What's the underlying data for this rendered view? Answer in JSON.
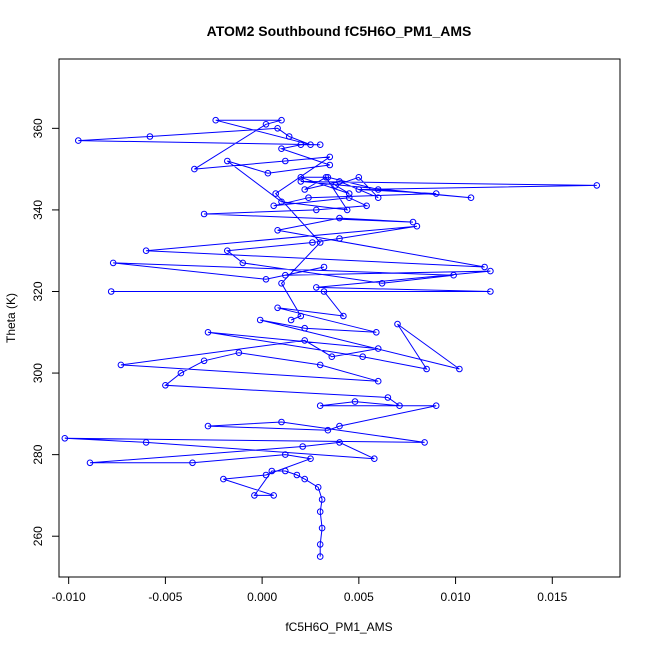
{
  "chart_data": {
    "type": "scatter",
    "title": "ATOM2 Southbound fC5H6O_PM1_AMS",
    "xlabel": "fC5H6O_PM1_AMS",
    "ylabel": "Theta (K)",
    "xlim": [
      -0.0105,
      0.0185
    ],
    "ylim": [
      250,
      377
    ],
    "x_ticks": [
      -0.01,
      -0.005,
      0.0,
      0.005,
      0.01,
      0.015
    ],
    "x_tick_labels": [
      "-0.010",
      "-0.005",
      "0.000",
      "0.005",
      "0.010",
      "0.015"
    ],
    "y_ticks": [
      260,
      280,
      300,
      320,
      340,
      360
    ],
    "y_tick_labels": [
      "260",
      "280",
      "300",
      "320",
      "340",
      "360"
    ],
    "grid": false,
    "series_color": "#0000ff",
    "marker": "open-circle",
    "connected": true,
    "series": [
      {
        "x": [
          0.003,
          0.003,
          0.0031,
          0.003,
          0.0031,
          0.0029,
          0.0022,
          0.0018,
          0.0012,
          0.0005,
          -0.0004,
          0.0006,
          -0.002,
          0.0002,
          0.0025,
          0.0012,
          -0.0036,
          -0.0089,
          0.0021,
          0.004,
          0.0058,
          -0.006,
          -0.0102,
          0.0084,
          0.001,
          -0.0028,
          0.0034,
          0.004,
          0.009,
          0.003,
          0.0048,
          0.0071,
          0.0065,
          -0.005,
          -0.0042,
          -0.003,
          -0.0012,
          0.003,
          0.006,
          -0.0073,
          0.0022,
          0.0036,
          0.006,
          -0.0028,
          0.0052,
          0.0085,
          0.007,
          0.0102,
          -0.0001,
          0.0022,
          0.0059,
          0.0008,
          0.0042,
          0.0032,
          -0.0078,
          0.0118,
          0.0028,
          0.0118,
          0.0012,
          0.0032,
          0.0002,
          -0.0077,
          0.0099,
          0.0062,
          -0.001,
          -0.0018,
          0.0026,
          0.004,
          0.008,
          -0.006,
          0.0115,
          0.0008,
          0.004,
          0.0078,
          -0.003,
          0.0028,
          0.0054,
          0.0045,
          0.0006,
          0.0024,
          0.009,
          0.005,
          0.0173,
          0.002,
          0.0108,
          0.006,
          0.0034,
          0.002,
          0.0045,
          0.0038,
          0.005,
          0.006,
          0.004,
          0.0022,
          0.0033,
          0.0044,
          0.001,
          -0.0018,
          0.0003,
          0.0035,
          0.001,
          0.002,
          0.003,
          -0.0095,
          -0.0058,
          0.0008,
          0.0014,
          0.0025,
          -0.0024,
          0.001,
          0.0002,
          -0.0035,
          0.0012,
          0.0035,
          0.0007,
          0.003,
          0.001,
          0.002,
          0.0015
        ],
        "y": [
          255,
          258,
          262,
          266,
          269,
          272,
          274,
          275,
          276,
          276,
          270,
          270,
          274,
          275,
          279,
          280,
          278,
          278,
          282,
          283,
          279,
          283,
          284,
          283,
          288,
          287,
          286,
          287,
          292,
          292,
          293,
          292,
          294,
          297,
          300,
          303,
          305,
          302,
          298,
          302,
          308,
          304,
          306,
          310,
          304,
          301,
          312,
          301,
          313,
          311,
          310,
          316,
          314,
          320,
          320,
          320,
          321,
          325,
          324,
          326,
          323,
          327,
          324,
          322,
          327,
          330,
          332,
          333,
          336,
          330,
          326,
          335,
          338,
          337,
          339,
          340,
          341,
          343,
          341,
          343,
          344,
          345,
          346,
          347,
          343,
          345,
          348,
          348,
          344,
          346,
          348,
          343,
          347,
          345,
          348,
          340,
          342,
          352,
          349,
          351,
          355,
          356,
          356,
          357,
          358,
          360,
          358,
          356,
          362,
          362,
          361,
          350,
          352,
          353,
          344,
          332,
          322,
          314,
          313
        ]
      }
    ]
  }
}
